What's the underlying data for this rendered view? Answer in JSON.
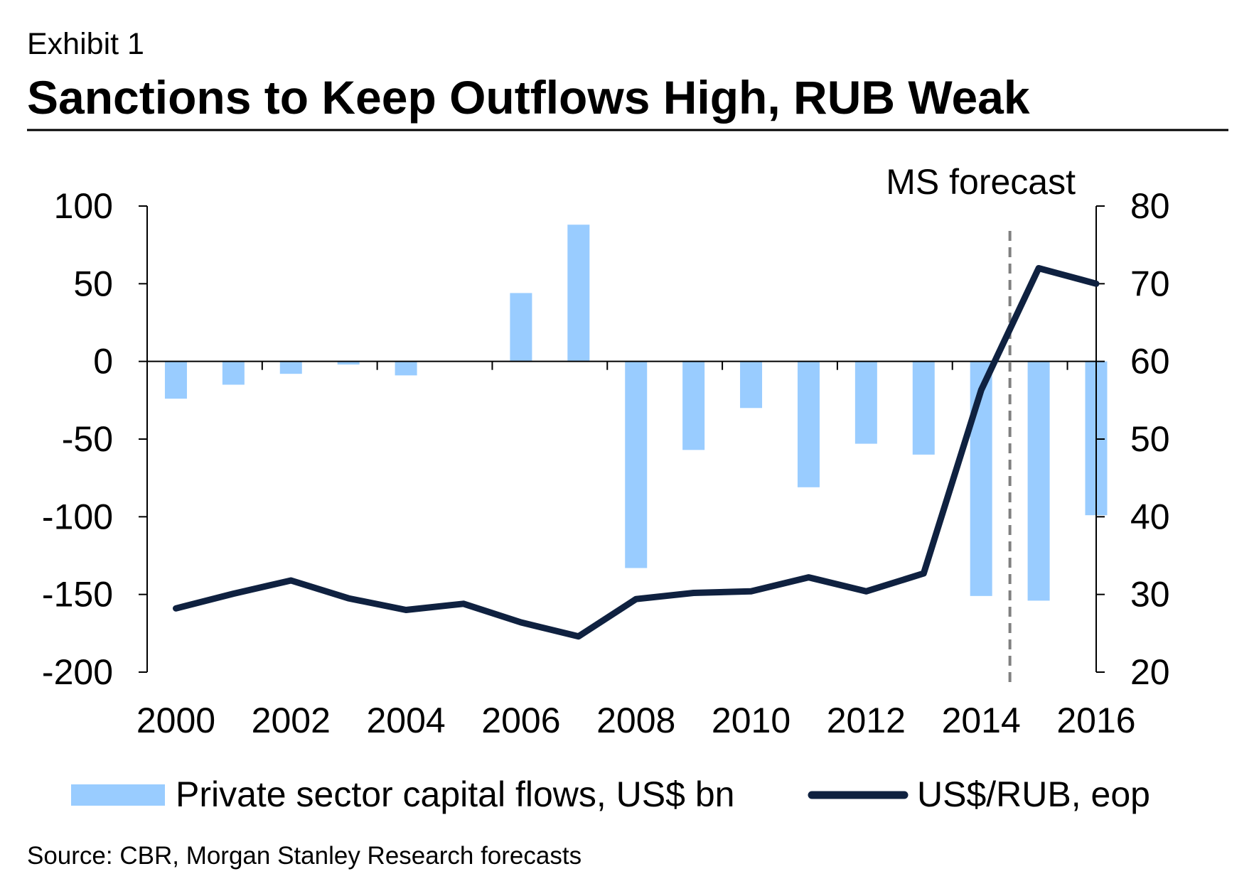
{
  "exhibit_label": "Exhibit 1",
  "title": "Sanctions to Keep Outflows High, RUB Weak",
  "source": "Source: CBR, Morgan Stanley Research forecasts",
  "colors": {
    "bar": "#99ccff",
    "line": "#0f2140",
    "axis": "#000000",
    "divider": "#808080"
  },
  "chart_data": {
    "type": "bar",
    "title": "Sanctions to Keep Outflows High, RUB Weak",
    "categories": [
      "2000",
      "2001",
      "2002",
      "2003",
      "2004",
      "2005",
      "2006",
      "2007",
      "2008",
      "2009",
      "2010",
      "2011",
      "2012",
      "2013",
      "2014",
      "2015",
      "2016"
    ],
    "x_tick_labels": [
      "2000",
      "2002",
      "2004",
      "2006",
      "2008",
      "2010",
      "2012",
      "2014",
      "2016"
    ],
    "series": [
      {
        "name": "Private sector capital flows, US$ bn",
        "type": "bar",
        "axis": "left",
        "values": [
          -24,
          -15,
          -8,
          -2,
          -9,
          0,
          44,
          88,
          -133,
          -57,
          -30,
          -81,
          -53,
          -60,
          -151,
          -154,
          -99
        ]
      },
      {
        "name": "US$/RUB, eop",
        "type": "line",
        "axis": "right",
        "values": [
          28.2,
          30.1,
          31.8,
          29.5,
          28.0,
          28.8,
          26.4,
          24.6,
          29.4,
          30.2,
          30.4,
          32.2,
          30.4,
          32.7,
          56.3,
          72.0,
          70.0
        ]
      }
    ],
    "y_left": {
      "range": [
        -200,
        100
      ],
      "ticks": [
        "100",
        "50",
        "0",
        "-50",
        "-100",
        "-150",
        "-200"
      ]
    },
    "y_right": {
      "range": [
        20,
        80
      ],
      "ticks": [
        "80",
        "70",
        "60",
        "50",
        "40",
        "30",
        "20"
      ]
    },
    "forecast_divider_after": "2014",
    "annotation": "MS forecast",
    "legend": [
      {
        "label": "Private sector capital flows, US$ bn",
        "kind": "bar"
      },
      {
        "label": "US$/RUB, eop",
        "kind": "line"
      }
    ],
    "legend_position": "bottom"
  }
}
